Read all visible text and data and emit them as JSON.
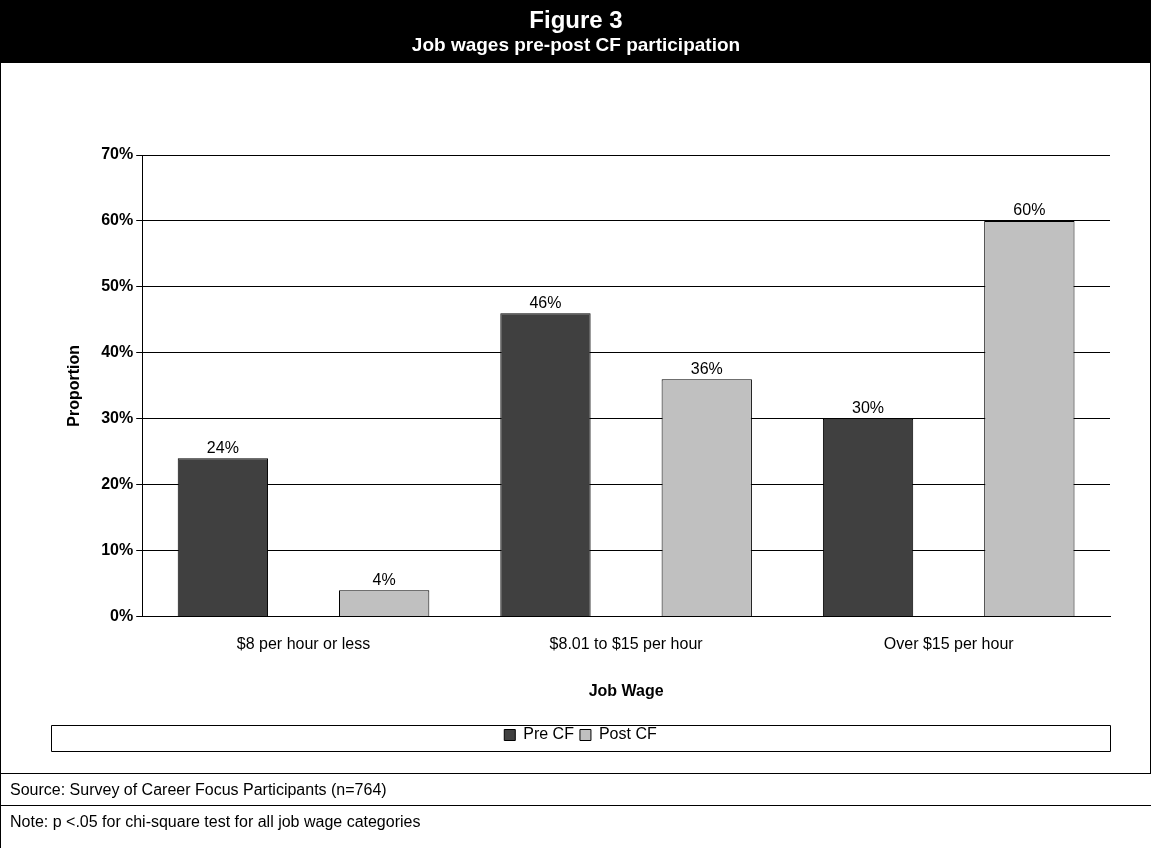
{
  "chart_data": {
    "type": "bar",
    "title": "Figure 3",
    "subtitle": "Job wages pre-post CF participation",
    "xlabel": "Job Wage",
    "ylabel": "Proportion",
    "categories": [
      "$8 per hour or less",
      "$8.01 to $15 per hour",
      "Over $15 per hour"
    ],
    "series": [
      {
        "name": "Pre CF",
        "color": "#404040",
        "values": [
          24,
          46,
          30
        ],
        "value_labels": [
          "24%",
          "46%",
          "30%"
        ]
      },
      {
        "name": "Post CF",
        "color": "#c0c0c0",
        "values": [
          4,
          36,
          60
        ],
        "value_labels": [
          "4%",
          "36%",
          "60%"
        ]
      }
    ],
    "ylim": [
      0,
      70
    ],
    "yticks": [
      {
        "value": 0,
        "label": "0%"
      },
      {
        "value": 10,
        "label": "10%"
      },
      {
        "value": 20,
        "label": "20%"
      },
      {
        "value": 30,
        "label": "30%"
      },
      {
        "value": 40,
        "label": "40%"
      },
      {
        "value": 50,
        "label": "50%"
      },
      {
        "value": 60,
        "label": "60%"
      },
      {
        "value": 70,
        "label": "70%"
      }
    ],
    "grid": "y",
    "legend": "bottom",
    "annotations": [
      "Source:  Survey of Career Focus Participants (n=764)",
      "Note:  p <.05 for chi-square test for all job wage categories"
    ]
  }
}
